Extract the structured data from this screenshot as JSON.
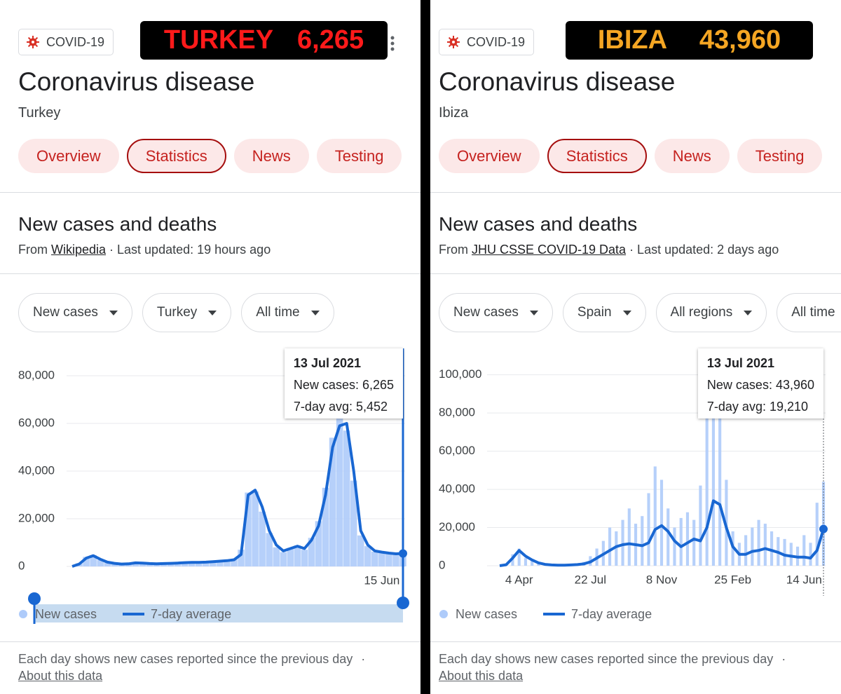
{
  "panels": [
    {
      "banner": {
        "place": "TURKEY",
        "count": "6,265",
        "color": "#ff1a1a"
      },
      "chip": "COVID-19",
      "title": "Coronavirus disease",
      "location": "Turkey",
      "tabs": [
        "Overview",
        "Statistics",
        "News",
        "Testing"
      ],
      "selected_tab": 1,
      "section_title": "New cases and deaths",
      "source_prefix": "From",
      "source": "Wikipedia",
      "updated": "· Last updated: 19 hours ago",
      "filters": [
        "New cases",
        "Turkey",
        "All time"
      ],
      "chart_data": {
        "type": "bar",
        "ylim": [
          0,
          90000
        ],
        "yticks": [
          0,
          {
            "value": 20000,
            "label": "20,000"
          },
          {
            "value": 40000,
            "label": "40,000"
          },
          {
            "value": 60000,
            "label": "60,000"
          },
          {
            "value": 80000,
            "label": "80,000"
          }
        ],
        "grid": true,
        "range_slider": true,
        "categories": [
          null,
          null,
          null,
          null,
          null,
          null,
          null,
          null,
          null,
          null,
          null,
          null,
          null,
          null,
          null,
          null,
          null,
          null,
          null,
          null,
          null,
          null,
          null,
          null,
          null,
          null,
          null,
          null,
          null,
          null,
          null,
          null,
          null,
          null,
          null,
          null,
          null,
          null,
          null,
          null,
          null,
          null,
          null,
          null,
          "15 Jun",
          null,
          null,
          null
        ],
        "series": [
          {
            "name": "New cases",
            "type": "bar",
            "color": "#aecbfa",
            "values": [
              0,
              1300,
              4000,
              4700,
              2700,
              1600,
              1200,
              1100,
              1200,
              1600,
              1300,
              1100,
              1200,
              1300,
              1400,
              1500,
              1700,
              1600,
              1800,
              1900,
              2100,
              2300,
              2500,
              3000,
              7000,
              31000,
              31500,
              23000,
              14000,
              8000,
              6000,
              7800,
              8800,
              7000,
              12000,
              19000,
              33000,
              54000,
              62000,
              57000,
              36000,
              13000,
              8500,
              6200,
              5800,
              5500,
              5200,
              6265
            ]
          },
          {
            "name": "7-day average",
            "type": "line",
            "color": "#1967d2",
            "values": [
              0,
              1000,
              3500,
              4500,
              3000,
              1800,
              1300,
              1000,
              1100,
              1500,
              1400,
              1200,
              1100,
              1200,
              1300,
              1400,
              1600,
              1700,
              1700,
              1800,
              2000,
              2200,
              2400,
              2800,
              5000,
              30000,
              32000,
              25000,
              15000,
              9000,
              6500,
              7500,
              8500,
              7500,
              11000,
              17000,
              30000,
              50000,
              59000,
              60000,
              40000,
              15000,
              9000,
              6500,
              6000,
              5600,
              5300,
              5452
            ]
          }
        ],
        "tooltip": {
          "title": "13 Jul 2021",
          "lines": [
            "New cases: 6,265",
            "7-day avg: 5,452"
          ]
        }
      },
      "footnote": "Each day shows new cases reported since the previous day",
      "footnote_sep": "·",
      "about": "About this data"
    },
    {
      "banner": {
        "place": "IBIZA",
        "count": "43,960",
        "color": "#f5a623"
      },
      "chip": "COVID-19",
      "title": "Coronavirus disease",
      "location": "Ibiza",
      "tabs": [
        "Overview",
        "Statistics",
        "News",
        "Testing"
      ],
      "selected_tab": 1,
      "section_title": "New cases and deaths",
      "source_prefix": "From",
      "source": "JHU CSSE COVID-19 Data",
      "updated": "· Last updated: 2 days ago",
      "filters": [
        "New cases",
        "Spain",
        "All regions",
        "All time"
      ],
      "chart_data": {
        "type": "bar",
        "ylim": [
          0,
          112000
        ],
        "yticks": [
          0,
          {
            "value": 20000,
            "label": "20,000"
          },
          {
            "value": 40000,
            "label": "40,000"
          },
          {
            "value": 60000,
            "label": "60,000"
          },
          {
            "value": 80000,
            "label": "80,000"
          },
          {
            "value": 100000,
            "label": "100,000"
          }
        ],
        "grid": true,
        "range_slider": false,
        "categories": [
          null,
          null,
          null,
          "4 Apr",
          null,
          null,
          null,
          null,
          null,
          null,
          null,
          null,
          null,
          null,
          "22 Jul",
          null,
          null,
          null,
          null,
          null,
          null,
          null,
          null,
          null,
          null,
          "8 Nov",
          null,
          null,
          null,
          null,
          null,
          null,
          null,
          null,
          null,
          null,
          "25 Feb",
          null,
          null,
          null,
          null,
          null,
          null,
          null,
          null,
          null,
          null,
          "14 Jun",
          null,
          null,
          null
        ],
        "series": [
          {
            "name": "New cases",
            "type": "bar",
            "color": "#aecbfa",
            "values": [
              0,
              1000,
              6000,
              9000,
              4000,
              2500,
              1200,
              500,
              300,
              200,
              400,
              600,
              900,
              2000,
              5000,
              9000,
              13000,
              20000,
              18000,
              24000,
              30000,
              22000,
              26000,
              38000,
              52000,
              45000,
              30000,
              20000,
              25000,
              28000,
              24000,
              42000,
              80000,
              110000,
              100000,
              45000,
              18000,
              12000,
              16000,
              20000,
              24000,
              22000,
              18000,
              15000,
              14000,
              12000,
              10000,
              16000,
              12000,
              33000,
              43960
            ]
          },
          {
            "name": "7-day average",
            "type": "line",
            "color": "#1967d2",
            "values": [
              0,
              500,
              4000,
              8000,
              5000,
              3000,
              1500,
              700,
              400,
              300,
              300,
              400,
              600,
              1000,
              2000,
              4000,
              6000,
              8000,
              10000,
              11000,
              11500,
              11000,
              10500,
              12000,
              19000,
              21000,
              18000,
              13000,
              10000,
              12000,
              14000,
              13000,
              20000,
              34000,
              32000,
              20000,
              10000,
              6000,
              6000,
              7500,
              8000,
              9000,
              8000,
              7000,
              5500,
              5000,
              4500,
              4500,
              4000,
              8000,
              19210
            ]
          }
        ],
        "tooltip": {
          "title": "13 Jul 2021",
          "lines": [
            "New cases: 43,960",
            "7-day avg: 19,210"
          ]
        }
      },
      "footnote": "Each day shows new cases reported since the previous day",
      "footnote_sep": "·",
      "about": "About this data"
    }
  ]
}
